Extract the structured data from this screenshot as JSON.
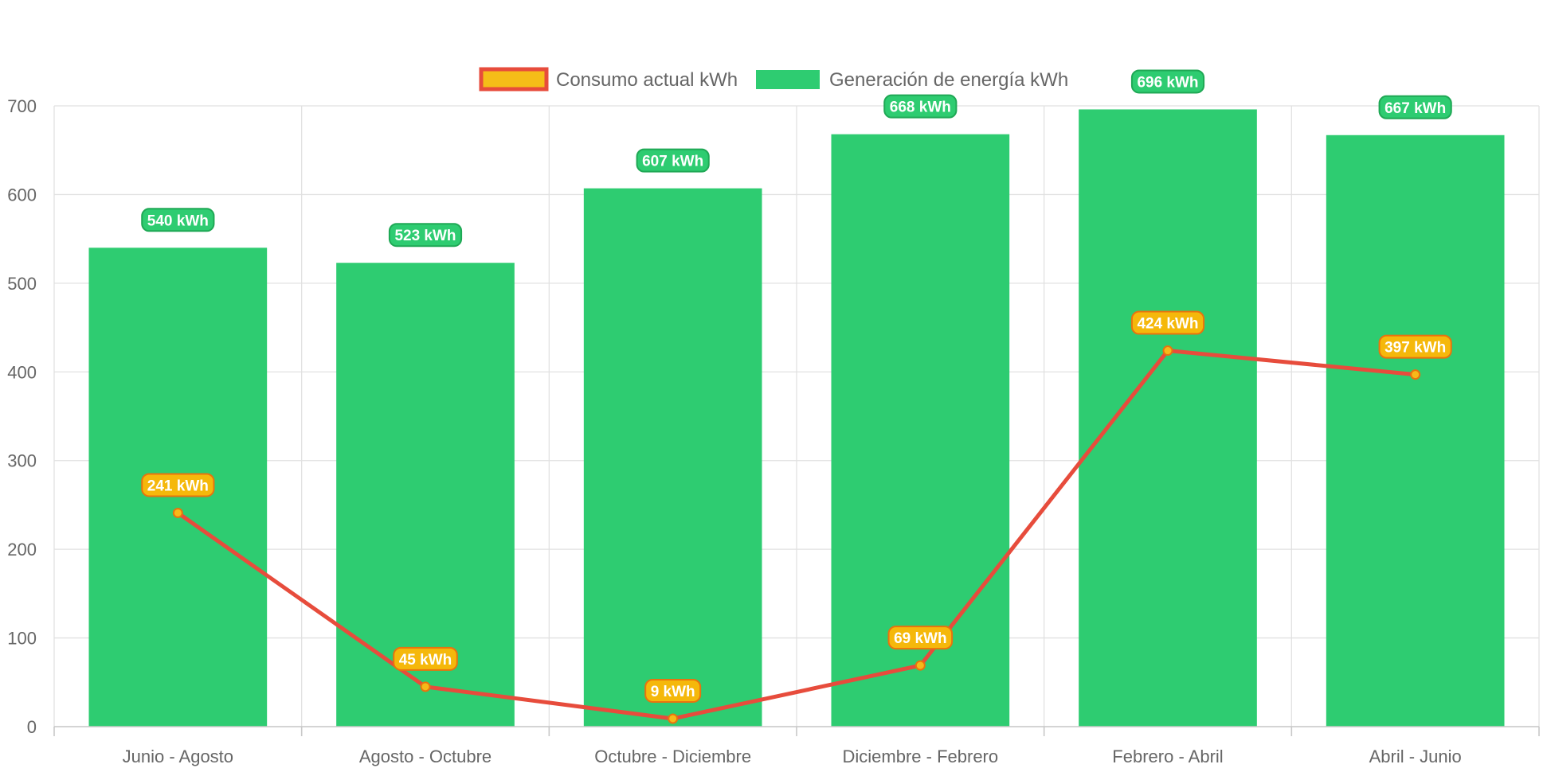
{
  "legend": {
    "line_label": "Consumo actual kWh",
    "bar_label": "Generación de energía kWh"
  },
  "colors": {
    "bar_fill": "#2ecc71",
    "bar_label_border": "#1fa855",
    "line_stroke": "#e74c3c",
    "line_point_fill": "#f7b919",
    "line_label_fill": "#f5b80b",
    "line_label_border": "#e8730e",
    "legend_line_fill": "#f5bd18",
    "grid": "#e1e1e1",
    "text": "#666666"
  },
  "chart_data": {
    "type": "bar",
    "categories": [
      "Junio - Agosto",
      "Agosto - Octubre",
      "Octubre - Diciembre",
      "Diciembre - Febrero",
      "Febrero - Abril",
      "Abril - Junio"
    ],
    "series": [
      {
        "name": "Generación de energía kWh",
        "type": "bar",
        "values": [
          540,
          523,
          607,
          668,
          696,
          667
        ]
      },
      {
        "name": "Consumo actual kWh",
        "type": "line",
        "values": [
          241,
          45,
          9,
          69,
          424,
          397
        ]
      }
    ],
    "data_label_suffix": " kWh",
    "yticks": [
      "0",
      "100",
      "200",
      "300",
      "400",
      "500",
      "600",
      "700"
    ],
    "ylim": [
      0,
      700
    ],
    "grid": true,
    "legend_position": "top-center"
  }
}
